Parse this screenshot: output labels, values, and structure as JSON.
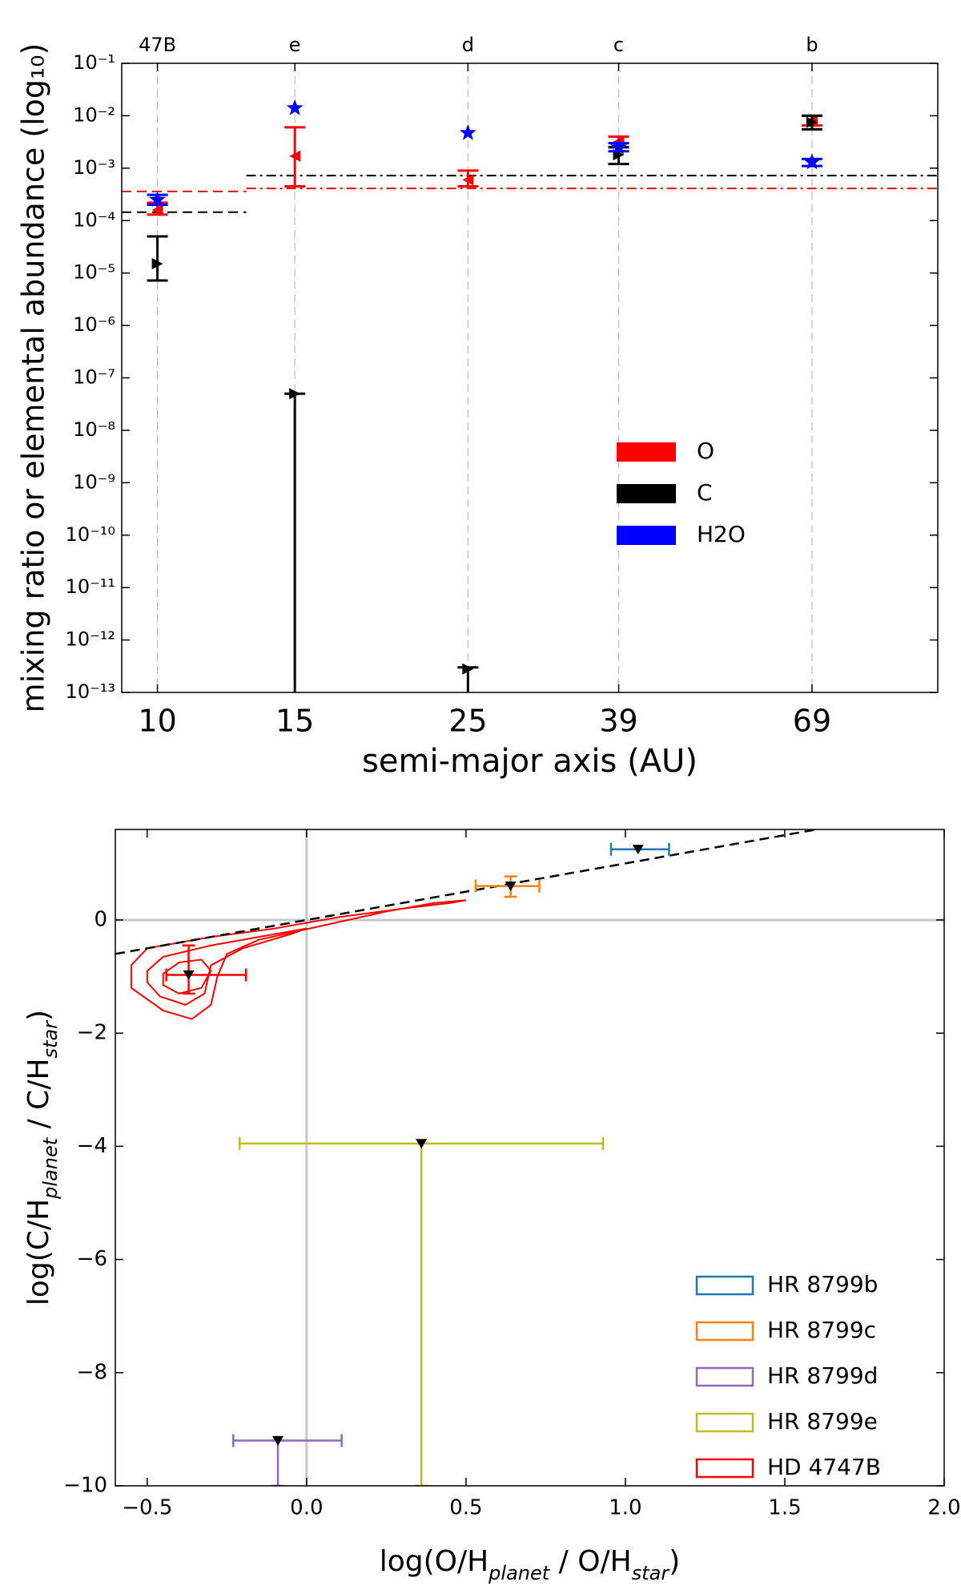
{
  "chart_data": [
    {
      "type": "errorbar",
      "xlabel": "semi-major axis (AU)",
      "ylabel": "mixing ratio or elemental abundance (log₁₀)",
      "xscale": "log",
      "yscale": "log",
      "xlim": [
        9,
        100
      ],
      "xticks": [
        10,
        15,
        25,
        39,
        69
      ],
      "top_labels": [
        "47B",
        "e",
        "d",
        "c",
        "b"
      ],
      "ylim": [
        1e-13,
        0.1
      ],
      "yticks": [
        {
          "value": 1e-13,
          "label": "10⁻¹³"
        },
        {
          "value": 1e-12,
          "label": "10⁻¹²"
        },
        {
          "value": 1e-11,
          "label": "10⁻¹¹"
        },
        {
          "value": 1e-10,
          "label": "10⁻¹⁰"
        },
        {
          "value": 1e-09,
          "label": "10⁻⁹"
        },
        {
          "value": 1e-08,
          "label": "10⁻⁸"
        },
        {
          "value": 1e-07,
          "label": "10⁻⁷"
        },
        {
          "value": 1e-06,
          "label": "10⁻⁶"
        },
        {
          "value": 1e-05,
          "label": "10⁻⁵"
        },
        {
          "value": 0.0001,
          "label": "10⁻⁴"
        },
        {
          "value": 0.001,
          "label": "10⁻³"
        },
        {
          "value": 0.01,
          "label": "10⁻²"
        },
        {
          "value": 0.1,
          "label": "10⁻¹"
        }
      ],
      "x": [
        10,
        15,
        25,
        39,
        69
      ],
      "vertical_guides": true,
      "legend": "lower right",
      "series": [
        {
          "name": "O",
          "color": "#ff0000",
          "marker": "left-triangle",
          "values": [
            0.00016,
            0.0017,
            0.0006,
            0.0032,
            0.008
          ],
          "low": [
            0.00013,
            0.00045,
            0.00045,
            0.0025,
            0.0065
          ],
          "high": [
            0.00022,
            0.006,
            0.0009,
            0.004,
            0.01
          ]
        },
        {
          "name": "C",
          "color": "#000000",
          "marker": "right-triangle",
          "values": [
            1.5e-05,
            5e-08,
            2.8e-13,
            0.0018,
            0.0075
          ],
          "low": [
            7.2e-06,
            1e-14,
            1e-14,
            0.0012,
            0.0055
          ],
          "high": [
            5e-05,
            5e-08,
            3e-13,
            0.0025,
            0.01
          ]
        },
        {
          "name": "H2O",
          "color": "#0000ff",
          "marker": "star",
          "values": [
            0.00025,
            0.014,
            0.0047,
            0.0025,
            0.0013
          ],
          "low": [
            0.0002,
            null,
            null,
            0.0021,
            0.0011
          ],
          "high": [
            0.00031,
            null,
            null,
            0.003,
            0.0015
          ]
        }
      ],
      "reference_lines": [
        {
          "color": "#ff0000",
          "style": "dashed",
          "value": 0.00036,
          "x_range": [
            9,
            13
          ]
        },
        {
          "color": "#000000",
          "style": "dashed",
          "value": 0.000145,
          "x_range": [
            9,
            13
          ]
        },
        {
          "color": "#ff0000",
          "style": "dash-dot",
          "value": 0.00041,
          "x_range": [
            13,
            100
          ]
        },
        {
          "color": "#000000",
          "style": "dash-dot",
          "value": 0.00072,
          "x_range": [
            13,
            100
          ]
        }
      ]
    },
    {
      "type": "scatter",
      "xlabel": [
        "log(O/H",
        "planet",
        " / O/H",
        "star",
        ")"
      ],
      "ylabel": [
        "log(C/H",
        "planet",
        " / C/H",
        "star",
        ")"
      ],
      "xlim": [
        -0.6,
        2.0
      ],
      "xticks": [
        {
          "value": -0.5,
          "label": "−0.5"
        },
        {
          "value": 0,
          "label": "0.0"
        },
        {
          "value": 0.5,
          "label": "0.5"
        },
        {
          "value": 1,
          "label": "1.0"
        },
        {
          "value": 1.5,
          "label": "1.5"
        },
        {
          "value": 2,
          "label": "2.0"
        }
      ],
      "ylim": [
        -10,
        1.6
      ],
      "yticks": [
        {
          "value": -10,
          "label": "−10"
        },
        {
          "value": -8,
          "label": "−8"
        },
        {
          "value": -6,
          "label": "−6"
        },
        {
          "value": -4,
          "label": "−4"
        },
        {
          "value": -2,
          "label": "−2"
        },
        0
      ],
      "zero_lines": true,
      "legend": "lower right",
      "reference_line": {
        "x": [
          -0.6,
          1.6
        ],
        "y": [
          -0.6,
          1.6
        ],
        "color": "#000000",
        "style": "dashed"
      },
      "series": [
        {
          "name": "HR 8799b",
          "color": "#1f77b4",
          "x": 1.04,
          "y": 1.25,
          "xlow": 0.955,
          "xhigh": 1.137,
          "ylow": null,
          "yhigh": null
        },
        {
          "name": "HR 8799c",
          "color": "#ff7f0e",
          "x": 0.64,
          "y": 0.6,
          "xlow": 0.53,
          "xhigh": 0.73,
          "ylow": 0.41,
          "yhigh": 0.77
        },
        {
          "name": "HR 8799d",
          "color": "#9467bd",
          "x": -0.09,
          "y": -9.2,
          "xlow": -0.23,
          "xhigh": 0.11,
          "ylow": -10,
          "yhigh": -9.2
        },
        {
          "name": "HR 8799e",
          "color": "#bcbd22",
          "x": 0.36,
          "y": -3.95,
          "xlow": -0.21,
          "xhigh": 0.93,
          "ylow": -10,
          "yhigh": -3.95
        },
        {
          "name": "HD 4747B",
          "color": "#ff0000",
          "x": -0.37,
          "y": -0.97,
          "xlow": -0.44,
          "xhigh": -0.19,
          "ylow": -1.3,
          "yhigh": -0.45,
          "contours": [
            {
              "x": [
                -0.55,
                -0.5,
                -0.3,
                -0.1,
                0.1,
                0.3,
                0.45,
                0.5,
                0.4,
                0.25,
                0.05,
                -0.15,
                -0.25,
                -0.28,
                -0.3,
                -0.36,
                -0.45,
                -0.55
              ],
              "y": [
                -0.8,
                -0.5,
                -0.3,
                -0.15,
                0.05,
                0.2,
                0.3,
                0.35,
                0.3,
                0.15,
                -0.1,
                -0.35,
                -0.6,
                -1.0,
                -1.5,
                -1.75,
                -1.6,
                -1.2
              ]
            },
            {
              "x": [
                -0.5,
                -0.45,
                -0.3,
                -0.15,
                0,
                -0.05,
                -0.2,
                -0.3,
                -0.32,
                -0.38,
                -0.46,
                -0.5
              ],
              "y": [
                -0.9,
                -0.65,
                -0.45,
                -0.3,
                -0.15,
                -0.25,
                -0.5,
                -0.8,
                -1.3,
                -1.5,
                -1.35,
                -1.1
              ]
            },
            {
              "x": [
                -0.45,
                -0.4,
                -0.33,
                -0.3,
                -0.33,
                -0.4,
                -0.45
              ],
              "y": [
                -0.95,
                -0.75,
                -0.7,
                -0.9,
                -1.2,
                -1.3,
                -1.15
              ]
            }
          ]
        }
      ]
    }
  ]
}
